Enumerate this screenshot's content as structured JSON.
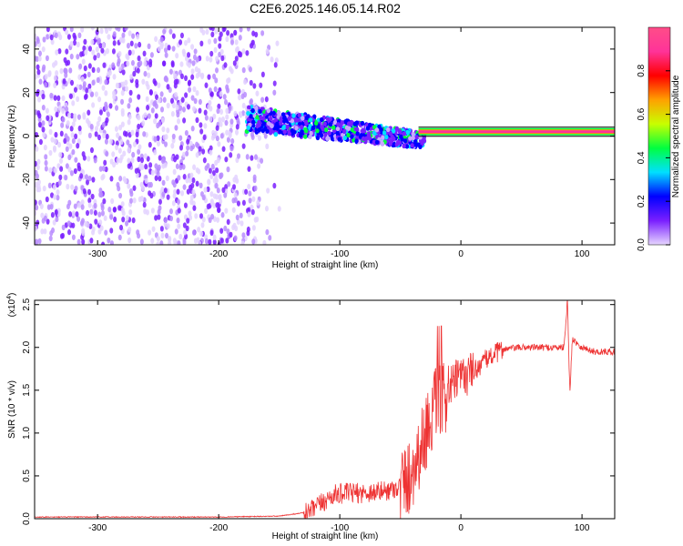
{
  "title": "C2E6.2025.146.05.14.R02",
  "chart_data": [
    {
      "type": "heatmap",
      "xlabel": "Height of straight line (km)",
      "ylabel": "Frequency (Hz)",
      "xlim": [
        -352,
        127
      ],
      "ylim": [
        -50,
        50
      ],
      "x_ticks": [
        -300,
        -200,
        -100,
        0,
        100
      ],
      "y_ticks": [
        -40,
        -20,
        0,
        20,
        40
      ],
      "grid": false,
      "colorbar": {
        "label": "Normalized spectral amplitude",
        "range": [
          0,
          1
        ],
        "ticks": [
          "0.0",
          "0.2",
          "0.4",
          "0.6",
          "0.8"
        ],
        "colors": [
          "#e6d6ff",
          "#7a1fff",
          "#0000ff",
          "#00e0ff",
          "#00ff40",
          "#c8ff00",
          "#ffa000",
          "#ff0000",
          "#ff3399",
          "#ff4d88"
        ]
      },
      "regions": [
        {
          "x_range": [
            -352,
            -147
          ],
          "frequency_range": [
            -50,
            50
          ],
          "amplitude": "0.0-0.2",
          "note": "scattered noise"
        },
        {
          "x_range": [
            -177,
            -30
          ],
          "frequency_center": [
            8,
            -2
          ],
          "bandwidth_hz": 12,
          "amplitude": "0.2-0.6"
        },
        {
          "x_range": [
            -35,
            127
          ],
          "frequency": 2,
          "amplitude": "0.9-1.0"
        }
      ]
    },
    {
      "type": "line",
      "xlabel": "Height of straight line (km)",
      "ylabel": "SNR (10 * v/v)",
      "y_multiplier": "(x10",
      "y_multiplier_exp": "4",
      "xlim": [
        -352,
        127
      ],
      "ylim": [
        0,
        2.55
      ],
      "x_ticks": [
        -300,
        -200,
        -100,
        0,
        100
      ],
      "y_ticks": [
        "0.0",
        "0.5",
        "1.0",
        "1.5",
        "2.0",
        "2.5"
      ],
      "grid": false,
      "color": "#ee3333",
      "series": [
        {
          "points": [
            [
              -352,
              0.02
            ],
            [
              -300,
              0.02
            ],
            [
              -200,
              0.02
            ],
            [
              -150,
              0.03
            ],
            [
              -125,
              0.08
            ],
            [
              -115,
              0.18
            ],
            [
              -105,
              0.28
            ],
            [
              -95,
              0.3
            ],
            [
              -80,
              0.3
            ],
            [
              -60,
              0.33
            ],
            [
              -50,
              0.38
            ],
            [
              -42,
              0.5
            ],
            [
              -35,
              0.75
            ],
            [
              -28,
              1.05
            ],
            [
              -22,
              1.3
            ],
            [
              -15,
              1.4
            ],
            [
              -10,
              1.5
            ],
            [
              -5,
              1.6
            ],
            [
              0,
              1.65
            ],
            [
              5,
              1.68
            ],
            [
              10,
              1.72
            ],
            [
              15,
              1.78
            ],
            [
              20,
              1.85
            ],
            [
              25,
              1.9
            ],
            [
              35,
              1.98
            ],
            [
              50,
              2.0
            ],
            [
              70,
              2.0
            ],
            [
              85,
              2.0
            ],
            [
              88,
              2.55
            ],
            [
              90,
              1.45
            ],
            [
              92,
              2.1
            ],
            [
              100,
              2.0
            ],
            [
              110,
              1.95
            ],
            [
              127,
              1.95
            ]
          ]
        }
      ]
    }
  ]
}
